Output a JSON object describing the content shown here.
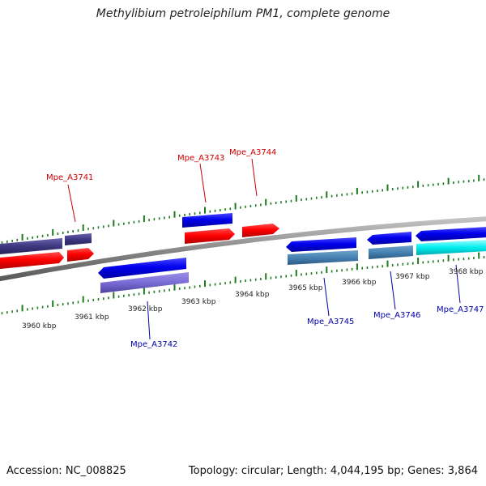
{
  "title": "Methylibium petroleiphilum PM1, complete genome",
  "footer": {
    "accession": "Accession: NC_008825",
    "summary": "Topology: circular; Length: 4,044,195 bp; Genes: 3,864"
  },
  "scale_labels": [
    "3960 kbp",
    "3961 kbp",
    "3962 kbp",
    "3963 kbp",
    "3964 kbp",
    "3965 kbp",
    "3966 kbp",
    "3967 kbp",
    "3968 kbp"
  ],
  "gene_labels": [
    {
      "name": "Mpe_A3741",
      "strand": "forward"
    },
    {
      "name": "Mpe_A3742",
      "strand": "reverse"
    },
    {
      "name": "Mpe_A3743",
      "strand": "forward"
    },
    {
      "name": "Mpe_A3744",
      "strand": "forward"
    },
    {
      "name": "Mpe_A3745",
      "strand": "reverse"
    },
    {
      "name": "Mpe_A3746",
      "strand": "reverse"
    },
    {
      "name": "Mpe_A3747",
      "strand": "reverse"
    }
  ],
  "colors": {
    "forward_label": "#cc0000",
    "reverse_label": "#0000aa",
    "backbone": "#8a8a8a",
    "tick": "#1f7a1f"
  }
}
